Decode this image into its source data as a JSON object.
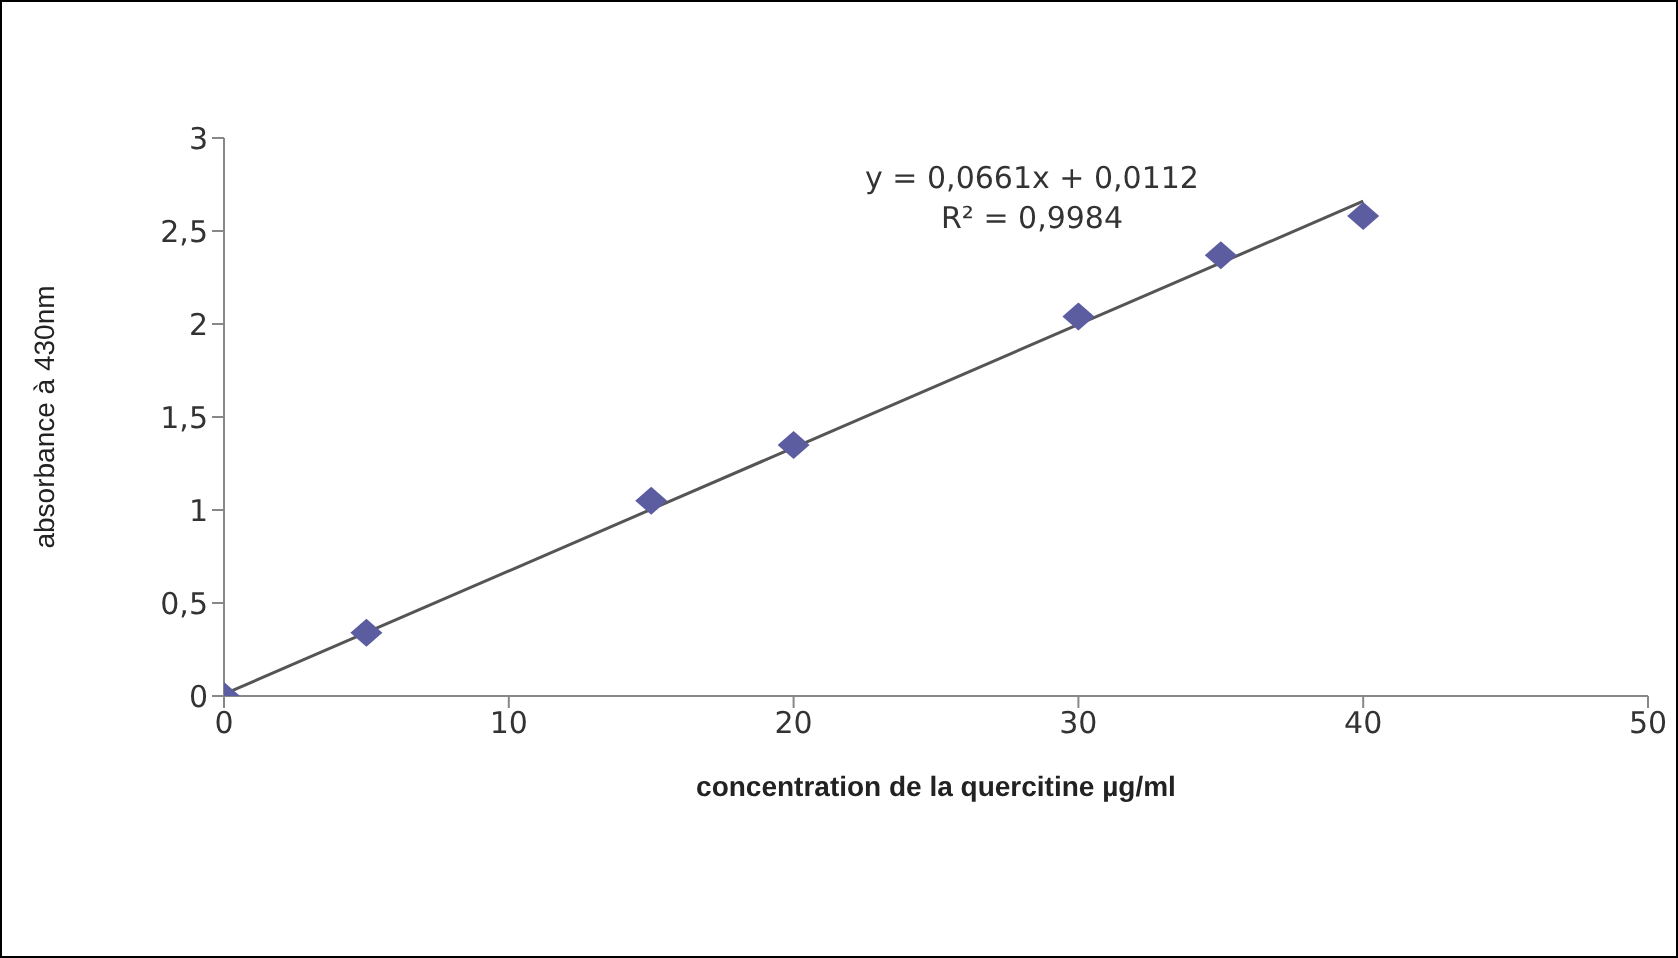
{
  "chart_data": {
    "type": "scatter",
    "xlabel": "concentration  de la quercitine µg/ml",
    "ylabel": "absorbance à 430nm",
    "xlim": [
      0,
      50
    ],
    "xticks": [
      0,
      10,
      20,
      30,
      40,
      50
    ],
    "ylim": [
      0,
      3
    ],
    "yticks": [
      0,
      {
        "value": 0.5,
        "label": "0,5"
      },
      1,
      {
        "value": 1.5,
        "label": "1,5"
      },
      2,
      {
        "value": 2.5,
        "label": "2,5"
      },
      3
    ],
    "grid": false,
    "legend": false,
    "series": [
      {
        "color": "#5c5ca0",
        "marker": "diamond",
        "x": [
          0,
          5,
          15,
          20,
          30,
          35,
          40
        ],
        "values": [
          0,
          0.34,
          1.05,
          1.35,
          2.04,
          2.37,
          2.58
        ]
      },
      {
        "type": "line",
        "color": "#555555",
        "marker": "none",
        "x": [
          0,
          40
        ],
        "values": [
          0.01,
          2.66
        ]
      }
    ],
    "annotations": [
      "y = 0,0661x + 0,0112",
      "R² = 0,9984"
    ]
  }
}
